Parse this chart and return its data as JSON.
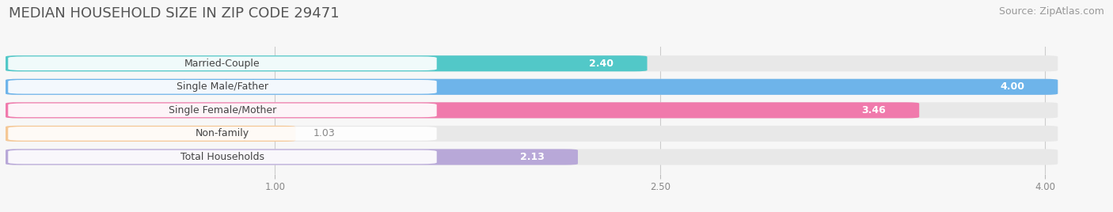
{
  "title": "MEDIAN HOUSEHOLD SIZE IN ZIP CODE 29471",
  "source": "Source: ZipAtlas.com",
  "categories": [
    "Married-Couple",
    "Single Male/Father",
    "Single Female/Mother",
    "Non-family",
    "Total Households"
  ],
  "values": [
    2.4,
    4.0,
    3.46,
    1.03,
    2.13
  ],
  "bar_colors": [
    "#52C8C8",
    "#6EB4EA",
    "#F07AAC",
    "#F5C896",
    "#B8A8D8"
  ],
  "xlim_min": 0.0,
  "xlim_max": 4.2,
  "xdata_min": 0.0,
  "xdata_max": 4.0,
  "xticks": [
    1.0,
    2.5,
    4.0
  ],
  "xtick_labels": [
    "1.00",
    "2.50",
    "4.00"
  ],
  "background_color": "#f7f7f7",
  "bar_background_color": "#e8e8e8",
  "title_fontsize": 13,
  "source_fontsize": 9,
  "bar_height": 0.58,
  "label_fontsize": 9,
  "value_fontsize": 9
}
